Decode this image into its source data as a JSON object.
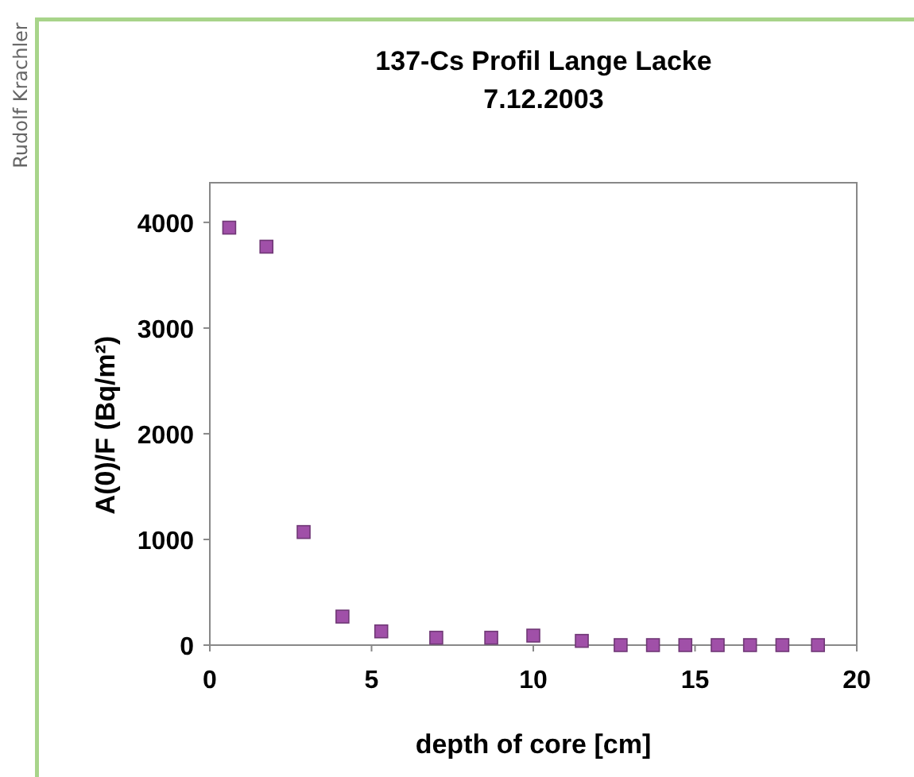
{
  "chart_data": {
    "type": "scatter",
    "title": "137-Cs Profil Lange Lacke",
    "subtitle": "7.12.2003",
    "xlabel": "depth of core [cm]",
    "ylabel": "A(0)/F (Bq/m²)",
    "annotations": [
      "Rudolf Krachler"
    ],
    "x": [
      0.6,
      1.75,
      2.9,
      4.1,
      5.3,
      7.0,
      8.7,
      10.0,
      11.5,
      12.7,
      13.7,
      14.7,
      15.7,
      16.7,
      17.7,
      18.8
    ],
    "series": [
      {
        "color": "#a050a8",
        "values": [
          3950,
          3770,
          1070,
          270,
          130,
          70,
          70,
          90,
          40,
          0,
          0,
          0,
          0,
          0,
          0,
          0
        ]
      }
    ],
    "xlim": [
      0,
      20
    ],
    "xticks": [
      0,
      5,
      10,
      15,
      20
    ],
    "ylim": [
      0,
      4375
    ],
    "yticks": [
      0,
      1000,
      2000,
      3000,
      4000
    ],
    "grid": false,
    "marker": "square"
  }
}
